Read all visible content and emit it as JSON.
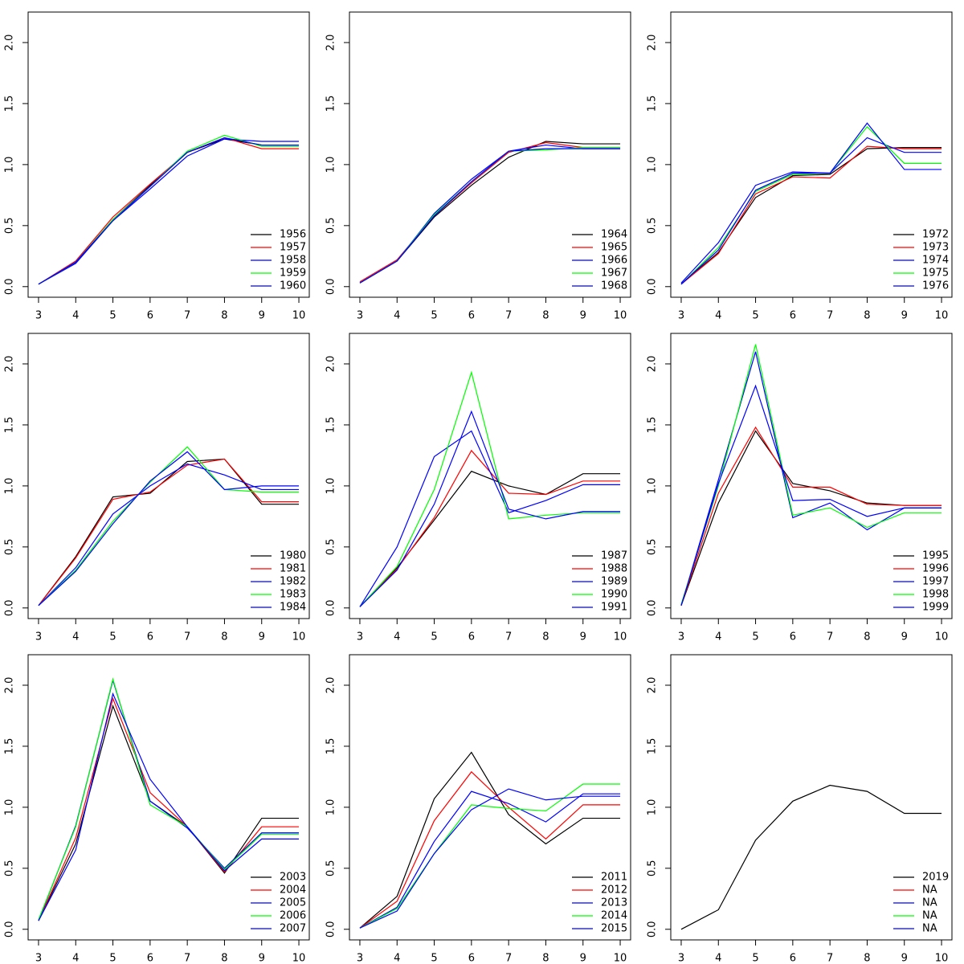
{
  "chart_data": [
    {
      "type": "line",
      "x": [
        3,
        4,
        5,
        6,
        7,
        8,
        9,
        10
      ],
      "xlim": [
        2.72,
        10.28
      ],
      "xticks": [
        3,
        4,
        5,
        6,
        7,
        8,
        9,
        10
      ],
      "ylim": [
        -0.087,
        2.25
      ],
      "yticks": [
        {
          "value": 0,
          "label": "0.0"
        },
        {
          "value": 0.5,
          "label": "0.5"
        },
        {
          "value": 1,
          "label": "1.0"
        },
        {
          "value": 1.5,
          "label": "1.5"
        },
        {
          "value": 2,
          "label": "2.0"
        }
      ],
      "legend": "bottomright",
      "series": [
        {
          "name": "1956",
          "color": "#000000",
          "values": [
            0.02,
            0.2,
            0.55,
            0.83,
            1.1,
            1.21,
            1.16,
            1.16
          ]
        },
        {
          "name": "1957",
          "color": "#ff0000",
          "values": [
            0.02,
            0.21,
            0.57,
            0.84,
            1.1,
            1.22,
            1.13,
            1.13
          ]
        },
        {
          "name": "1958",
          "color": "#0000ff",
          "values": [
            0.02,
            0.19,
            0.54,
            0.8,
            1.07,
            1.21,
            1.19,
            1.19
          ]
        },
        {
          "name": "1959",
          "color": "#00ff00",
          "values": [
            0.02,
            0.2,
            0.55,
            0.82,
            1.11,
            1.24,
            1.15,
            1.15
          ]
        },
        {
          "name": "1960",
          "color": "#0000ff",
          "values": [
            0.02,
            0.2,
            0.54,
            0.82,
            1.1,
            1.22,
            1.16,
            1.16
          ]
        }
      ]
    },
    {
      "type": "line",
      "x": [
        3,
        4,
        5,
        6,
        7,
        8,
        9,
        10
      ],
      "xlim": [
        2.72,
        10.28
      ],
      "xticks": [
        3,
        4,
        5,
        6,
        7,
        8,
        9,
        10
      ],
      "ylim": [
        -0.087,
        2.25
      ],
      "yticks": [
        {
          "value": 0,
          "label": "0.0"
        },
        {
          "value": 0.5,
          "label": "0.5"
        },
        {
          "value": 1,
          "label": "1.0"
        },
        {
          "value": 1.5,
          "label": "1.5"
        },
        {
          "value": 2,
          "label": "2.0"
        }
      ],
      "legend": "bottomright",
      "series": [
        {
          "name": "1964",
          "color": "#000000",
          "values": [
            0.03,
            0.21,
            0.57,
            0.83,
            1.06,
            1.19,
            1.17,
            1.17
          ]
        },
        {
          "name": "1965",
          "color": "#ff0000",
          "values": [
            0.04,
            0.22,
            0.58,
            0.85,
            1.1,
            1.18,
            1.14,
            1.14
          ]
        },
        {
          "name": "1966",
          "color": "#0000ff",
          "values": [
            0.03,
            0.21,
            0.6,
            0.88,
            1.11,
            1.16,
            1.13,
            1.13
          ]
        },
        {
          "name": "1967",
          "color": "#00ff00",
          "values": [
            0.03,
            0.21,
            0.59,
            0.86,
            1.11,
            1.12,
            1.14,
            1.14
          ]
        },
        {
          "name": "1968",
          "color": "#0000ff",
          "values": [
            0.03,
            0.21,
            0.58,
            0.86,
            1.11,
            1.13,
            1.13,
            1.13
          ]
        }
      ]
    },
    {
      "type": "line",
      "x": [
        3,
        4,
        5,
        6,
        7,
        8,
        9,
        10
      ],
      "xlim": [
        2.72,
        10.28
      ],
      "xticks": [
        3,
        4,
        5,
        6,
        7,
        8,
        9,
        10
      ],
      "ylim": [
        -0.087,
        2.25
      ],
      "yticks": [
        {
          "value": 0,
          "label": "0.0"
        },
        {
          "value": 0.5,
          "label": "0.5"
        },
        {
          "value": 1,
          "label": "1.0"
        },
        {
          "value": 1.5,
          "label": "1.5"
        },
        {
          "value": 2,
          "label": "2.0"
        }
      ],
      "legend": "bottomright",
      "series": [
        {
          "name": "1972",
          "color": "#000000",
          "values": [
            0.02,
            0.28,
            0.73,
            0.91,
            0.92,
            1.13,
            1.14,
            1.14
          ]
        },
        {
          "name": "1973",
          "color": "#ff0000",
          "values": [
            0.02,
            0.27,
            0.76,
            0.9,
            0.89,
            1.15,
            1.13,
            1.13
          ]
        },
        {
          "name": "1974",
          "color": "#0000ff",
          "values": [
            0.03,
            0.36,
            0.83,
            0.94,
            0.93,
            1.22,
            1.1,
            1.1
          ]
        },
        {
          "name": "1975",
          "color": "#00ff00",
          "values": [
            0.02,
            0.32,
            0.78,
            0.92,
            0.93,
            1.31,
            1.01,
            1.01
          ]
        },
        {
          "name": "1976",
          "color": "#0000ff",
          "values": [
            0.02,
            0.3,
            0.79,
            0.93,
            0.93,
            1.34,
            0.96,
            0.96
          ]
        }
      ]
    },
    {
      "type": "line",
      "x": [
        3,
        4,
        5,
        6,
        7,
        8,
        9,
        10
      ],
      "xlim": [
        2.72,
        10.28
      ],
      "xticks": [
        3,
        4,
        5,
        6,
        7,
        8,
        9,
        10
      ],
      "ylim": [
        -0.087,
        2.25
      ],
      "yticks": [
        {
          "value": 0,
          "label": "0.0"
        },
        {
          "value": 0.5,
          "label": "0.5"
        },
        {
          "value": 1,
          "label": "1.0"
        },
        {
          "value": 1.5,
          "label": "1.5"
        },
        {
          "value": 2,
          "label": "2.0"
        }
      ],
      "legend": "bottomright",
      "series": [
        {
          "name": "1980",
          "color": "#000000",
          "values": [
            0.02,
            0.42,
            0.91,
            0.94,
            1.2,
            1.22,
            0.85,
            0.85
          ]
        },
        {
          "name": "1981",
          "color": "#ff0000",
          "values": [
            0.02,
            0.41,
            0.89,
            0.95,
            1.17,
            1.22,
            0.87,
            0.87
          ]
        },
        {
          "name": "1982",
          "color": "#0000ff",
          "values": [
            0.02,
            0.33,
            0.77,
            1.0,
            1.18,
            1.09,
            0.97,
            0.97
          ]
        },
        {
          "name": "1983",
          "color": "#00ff00",
          "values": [
            0.02,
            0.31,
            0.71,
            1.03,
            1.32,
            0.97,
            0.95,
            0.95
          ]
        },
        {
          "name": "1984",
          "color": "#0000ff",
          "values": [
            0.02,
            0.3,
            0.69,
            1.04,
            1.28,
            0.97,
            1.0,
            1.0
          ]
        }
      ]
    },
    {
      "type": "line",
      "x": [
        3,
        4,
        5,
        6,
        7,
        8,
        9,
        10
      ],
      "xlim": [
        2.72,
        10.28
      ],
      "xticks": [
        3,
        4,
        5,
        6,
        7,
        8,
        9,
        10
      ],
      "ylim": [
        -0.087,
        2.25
      ],
      "yticks": [
        {
          "value": 0,
          "label": "0.0"
        },
        {
          "value": 0.5,
          "label": "0.5"
        },
        {
          "value": 1,
          "label": "1.0"
        },
        {
          "value": 1.5,
          "label": "1.5"
        },
        {
          "value": 2,
          "label": "2.0"
        }
      ],
      "legend": "bottomright",
      "series": [
        {
          "name": "1987",
          "color": "#000000",
          "values": [
            0.01,
            0.33,
            0.72,
            1.12,
            1.0,
            0.93,
            1.1,
            1.1
          ]
        },
        {
          "name": "1988",
          "color": "#ff0000",
          "values": [
            0.01,
            0.32,
            0.74,
            1.29,
            0.94,
            0.93,
            1.04,
            1.04
          ]
        },
        {
          "name": "1989",
          "color": "#0000ff",
          "values": [
            0.01,
            0.5,
            1.24,
            1.45,
            0.78,
            0.88,
            1.01,
            1.01
          ]
        },
        {
          "name": "1990",
          "color": "#00ff00",
          "values": [
            0.01,
            0.34,
            0.97,
            1.93,
            0.73,
            0.76,
            0.78,
            0.78
          ]
        },
        {
          "name": "1991",
          "color": "#0000ff",
          "values": [
            0.01,
            0.31,
            0.85,
            1.61,
            0.81,
            0.73,
            0.79,
            0.79
          ]
        }
      ]
    },
    {
      "type": "line",
      "x": [
        3,
        4,
        5,
        6,
        7,
        8,
        9,
        10
      ],
      "xlim": [
        2.72,
        10.28
      ],
      "xticks": [
        3,
        4,
        5,
        6,
        7,
        8,
        9,
        10
      ],
      "ylim": [
        -0.087,
        2.25
      ],
      "yticks": [
        {
          "value": 0,
          "label": "0.0"
        },
        {
          "value": 0.5,
          "label": "0.5"
        },
        {
          "value": 1,
          "label": "1.0"
        },
        {
          "value": 1.5,
          "label": "1.5"
        },
        {
          "value": 2,
          "label": "2.0"
        }
      ],
      "legend": "bottomright",
      "series": [
        {
          "name": "1995",
          "color": "#000000",
          "values": [
            0.02,
            0.86,
            1.45,
            1.02,
            0.96,
            0.86,
            0.84,
            0.84
          ]
        },
        {
          "name": "1996",
          "color": "#ff0000",
          "values": [
            0.02,
            0.94,
            1.48,
            0.99,
            0.99,
            0.85,
            0.84,
            0.84
          ]
        },
        {
          "name": "1997",
          "color": "#0000ff",
          "values": [
            0.02,
            1.05,
            2.1,
            0.74,
            0.86,
            0.64,
            0.82,
            0.82
          ]
        },
        {
          "name": "1998",
          "color": "#00ff00",
          "values": [
            0.03,
            1.0,
            2.16,
            0.76,
            0.82,
            0.66,
            0.78,
            0.78
          ]
        },
        {
          "name": "1999",
          "color": "#0000ff",
          "values": [
            0.02,
            1.02,
            1.82,
            0.88,
            0.89,
            0.75,
            0.82,
            0.82
          ]
        }
      ]
    },
    {
      "type": "line",
      "x": [
        3,
        4,
        5,
        6,
        7,
        8,
        9,
        10
      ],
      "xlim": [
        2.72,
        10.28
      ],
      "xticks": [
        3,
        4,
        5,
        6,
        7,
        8,
        9,
        10
      ],
      "ylim": [
        -0.087,
        2.25
      ],
      "yticks": [
        {
          "value": 0,
          "label": "0.0"
        },
        {
          "value": 0.5,
          "label": "0.5"
        },
        {
          "value": 1,
          "label": "1.0"
        },
        {
          "value": 1.5,
          "label": "1.5"
        },
        {
          "value": 2,
          "label": "2.0"
        }
      ],
      "legend": "bottomright",
      "series": [
        {
          "name": "2003",
          "color": "#000000",
          "values": [
            0.07,
            0.7,
            1.83,
            1.05,
            0.84,
            0.46,
            0.91,
            0.91
          ]
        },
        {
          "name": "2004",
          "color": "#ff0000",
          "values": [
            0.07,
            0.75,
            1.89,
            1.12,
            0.84,
            0.47,
            0.84,
            0.84
          ]
        },
        {
          "name": "2005",
          "color": "#0000ff",
          "values": [
            0.07,
            0.85,
            2.04,
            1.05,
            0.83,
            0.5,
            0.79,
            0.79
          ]
        },
        {
          "name": "2006",
          "color": "#00ff00",
          "values": [
            0.08,
            0.84,
            2.05,
            1.02,
            0.84,
            0.49,
            0.78,
            0.78
          ]
        },
        {
          "name": "2007",
          "color": "#0000ff",
          "values": [
            0.07,
            0.65,
            1.93,
            1.23,
            0.84,
            0.48,
            0.74,
            0.74
          ]
        }
      ]
    },
    {
      "type": "line",
      "x": [
        3,
        4,
        5,
        6,
        7,
        8,
        9,
        10
      ],
      "xlim": [
        2.72,
        10.28
      ],
      "xticks": [
        3,
        4,
        5,
        6,
        7,
        8,
        9,
        10
      ],
      "ylim": [
        -0.087,
        2.25
      ],
      "yticks": [
        {
          "value": 0,
          "label": "0.0"
        },
        {
          "value": 0.5,
          "label": "0.5"
        },
        {
          "value": 1,
          "label": "1.0"
        },
        {
          "value": 1.5,
          "label": "1.5"
        },
        {
          "value": 2,
          "label": "2.0"
        }
      ],
      "legend": "bottomright",
      "series": [
        {
          "name": "2011",
          "color": "#000000",
          "values": [
            0.01,
            0.27,
            1.07,
            1.45,
            0.94,
            0.7,
            0.91,
            0.91
          ]
        },
        {
          "name": "2012",
          "color": "#ff0000",
          "values": [
            0.01,
            0.23,
            0.89,
            1.29,
            1.0,
            0.74,
            1.02,
            1.02
          ]
        },
        {
          "name": "2013",
          "color": "#0000ff",
          "values": [
            0.01,
            0.18,
            0.72,
            1.13,
            1.03,
            0.88,
            1.11,
            1.11
          ]
        },
        {
          "name": "2014",
          "color": "#00ff00",
          "values": [
            0.01,
            0.17,
            0.62,
            1.02,
            0.99,
            0.97,
            1.19,
            1.19
          ]
        },
        {
          "name": "2015",
          "color": "#0000ff",
          "values": [
            0.01,
            0.15,
            0.62,
            0.98,
            1.15,
            1.06,
            1.09,
            1.09
          ]
        }
      ]
    },
    {
      "type": "line",
      "x": [
        3,
        4,
        5,
        6,
        7,
        8,
        9,
        10
      ],
      "xlim": [
        2.72,
        10.28
      ],
      "xticks": [
        3,
        4,
        5,
        6,
        7,
        8,
        9,
        10
      ],
      "ylim": [
        -0.087,
        2.25
      ],
      "yticks": [
        {
          "value": 0,
          "label": "0.0"
        },
        {
          "value": 0.5,
          "label": "0.5"
        },
        {
          "value": 1,
          "label": "1.0"
        },
        {
          "value": 1.5,
          "label": "1.5"
        },
        {
          "value": 2,
          "label": "2.0"
        }
      ],
      "legend": "bottomright",
      "series": [
        {
          "name": "2019",
          "color": "#000000",
          "values": [
            0.0,
            0.16,
            0.73,
            1.05,
            1.18,
            1.13,
            0.95,
            0.95
          ]
        },
        {
          "name": "NA",
          "color": "#ff0000",
          "values": [
            null,
            null,
            null,
            null,
            null,
            null,
            null,
            null
          ]
        },
        {
          "name": "NA",
          "color": "#0000ff",
          "values": [
            null,
            null,
            null,
            null,
            null,
            null,
            null,
            null
          ]
        },
        {
          "name": "NA",
          "color": "#00ff00",
          "values": [
            null,
            null,
            null,
            null,
            null,
            null,
            null,
            null
          ]
        },
        {
          "name": "NA",
          "color": "#0000ff",
          "values": [
            null,
            null,
            null,
            null,
            null,
            null,
            null,
            null
          ]
        }
      ]
    }
  ]
}
